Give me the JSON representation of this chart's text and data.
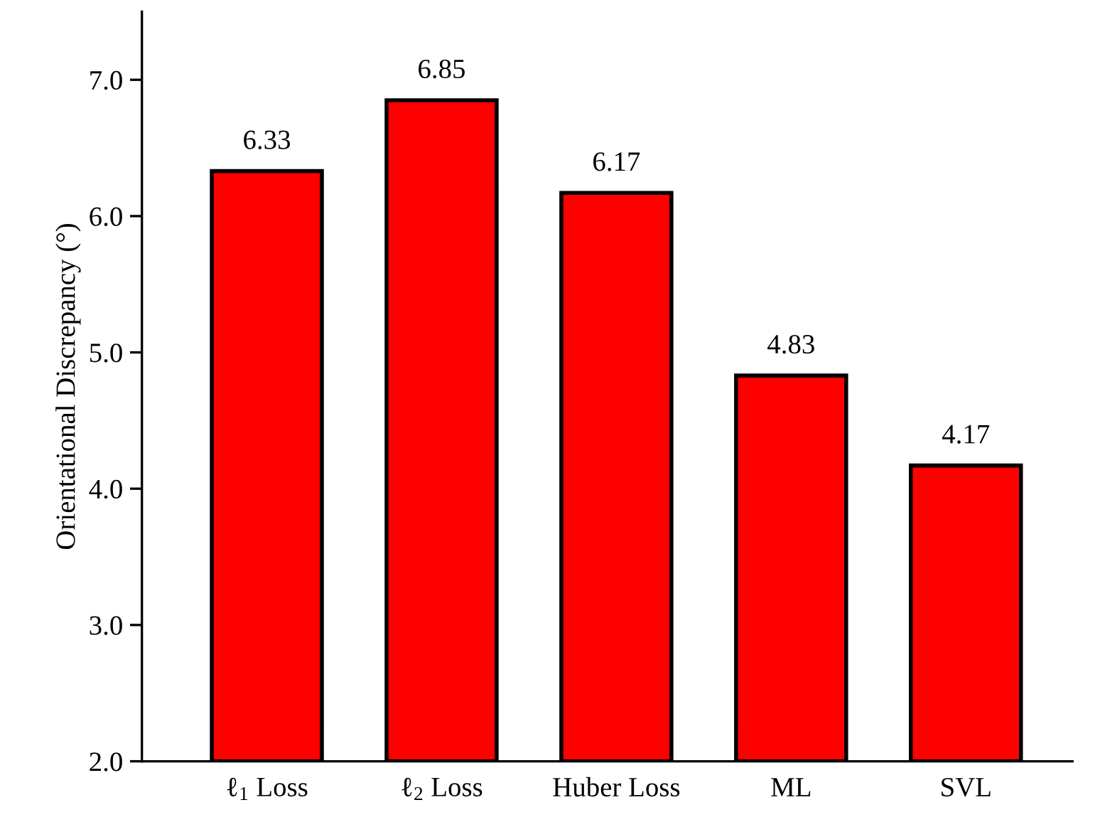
{
  "chart_data": {
    "type": "bar",
    "ylabel": "Orientational Discrepancy (°)",
    "categories": [
      "ℓ$_{1}$ Loss",
      "ℓ$_{2}$ Loss",
      "Huber Loss",
      "ML",
      "SVL"
    ],
    "values": [
      6.33,
      6.85,
      6.17,
      4.83,
      4.17
    ],
    "color": "#ff0000",
    "ylim": [
      2.0,
      7.5
    ],
    "yticks": [
      {
        "value": 2,
        "label": "2.0"
      },
      {
        "value": 3,
        "label": "3.0"
      },
      {
        "value": 4,
        "label": "4.0"
      },
      {
        "value": 5,
        "label": "5.0"
      },
      {
        "value": 6,
        "label": "6.0"
      },
      {
        "value": 7,
        "label": "7.0"
      }
    ],
    "data_labels": true,
    "grid": false,
    "legend": false
  }
}
